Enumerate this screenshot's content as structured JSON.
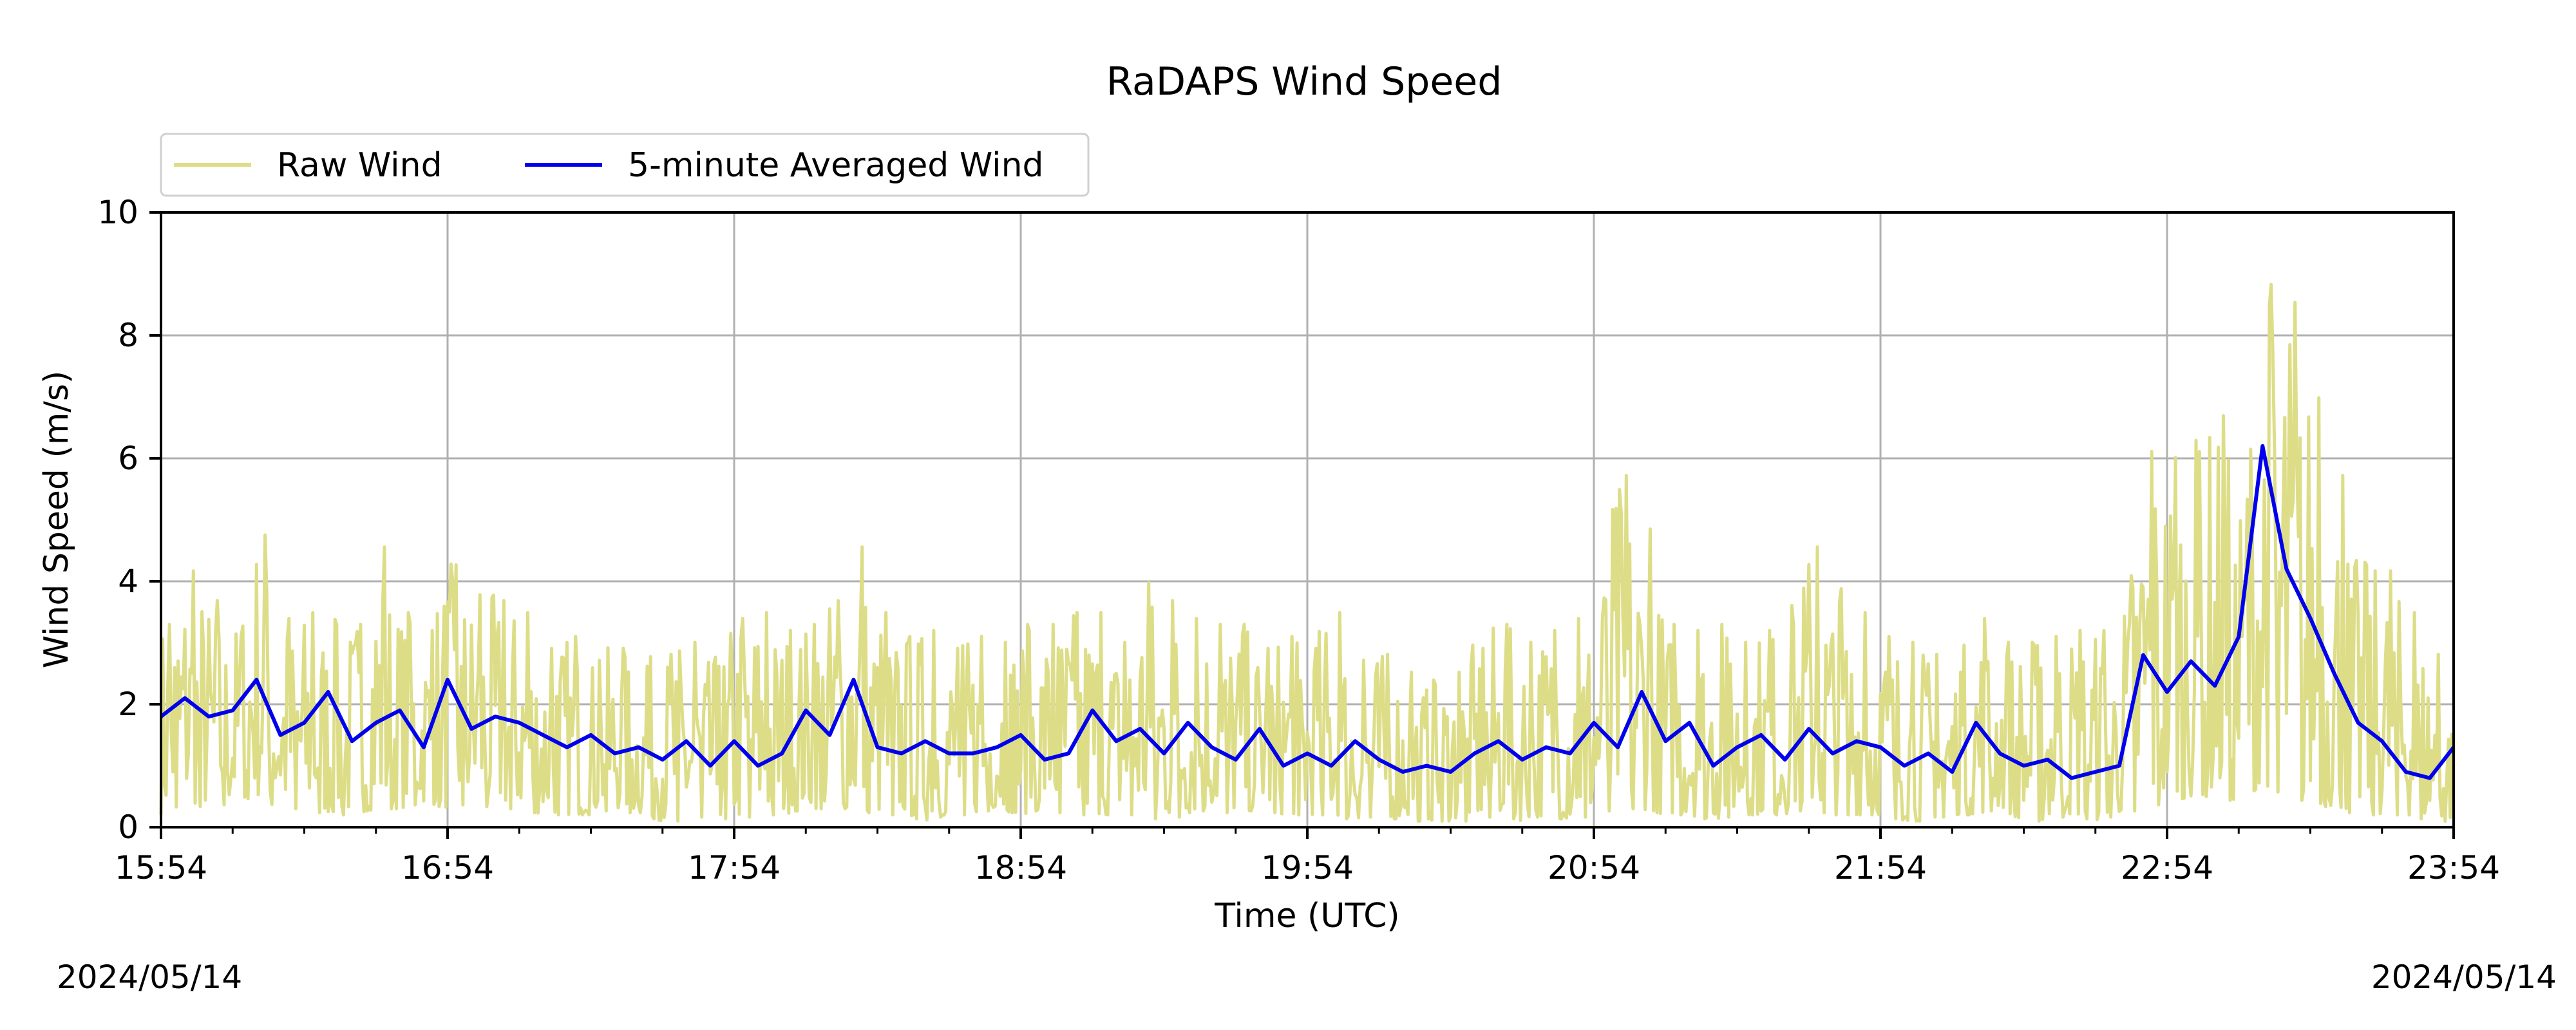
{
  "chart_data": {
    "type": "line",
    "title": "RaDAPS Wind Speed",
    "xlabel": "Time (UTC)",
    "ylabel": "Wind Speed (m/s)",
    "date_start": "2024/05/14",
    "date_end": "2024/05/14",
    "x_ticks": [
      "15:54",
      "16:54",
      "17:54",
      "18:54",
      "19:54",
      "20:54",
      "21:54",
      "22:54",
      "23:54"
    ],
    "y_ticks": [
      "0",
      "2",
      "4",
      "6",
      "8",
      "10"
    ],
    "xlim": [
      "15:54",
      "23:54"
    ],
    "ylim": [
      0,
      10
    ],
    "grid": true,
    "legend_position": "top-left, above plot",
    "series": [
      {
        "name": "Raw Wind",
        "color": "#dddd88",
        "style": "noisy raw samples, envelope (min/max) per 5 minutes",
        "x": [
          "15:54",
          "15:59",
          "16:04",
          "16:09",
          "16:14",
          "16:19",
          "16:24",
          "16:29",
          "16:34",
          "16:39",
          "16:44",
          "16:49",
          "16:54",
          "16:59",
          "17:04",
          "17:09",
          "17:14",
          "17:19",
          "17:24",
          "17:29",
          "17:34",
          "17:39",
          "17:44",
          "17:49",
          "17:54",
          "17:59",
          "18:04",
          "18:09",
          "18:14",
          "18:19",
          "18:24",
          "18:29",
          "18:34",
          "18:39",
          "18:44",
          "18:49",
          "18:54",
          "18:59",
          "19:04",
          "19:09",
          "19:14",
          "19:19",
          "19:24",
          "19:29",
          "19:34",
          "19:39",
          "19:44",
          "19:49",
          "19:54",
          "19:59",
          "20:04",
          "20:09",
          "20:14",
          "20:19",
          "20:24",
          "20:29",
          "20:34",
          "20:39",
          "20:44",
          "20:49",
          "20:54",
          "20:59",
          "21:04",
          "21:09",
          "21:14",
          "21:19",
          "21:24",
          "21:29",
          "21:34",
          "21:39",
          "21:44",
          "21:49",
          "21:54",
          "21:59",
          "22:04",
          "22:09",
          "22:14",
          "22:19",
          "22:24",
          "22:29",
          "22:34",
          "22:39",
          "22:44",
          "22:49",
          "22:54",
          "22:59",
          "23:04",
          "23:09",
          "23:14",
          "23:19",
          "23:24",
          "23:29",
          "23:34",
          "23:39",
          "23:44",
          "23:49",
          "23:54"
        ],
        "max": [
          3.4,
          4.3,
          3.8,
          3.2,
          4.9,
          3.5,
          3.6,
          3.4,
          3.4,
          4.7,
          3.6,
          3.3,
          4.4,
          3.9,
          3.8,
          3.6,
          3.0,
          3.2,
          2.8,
          3.0,
          2.7,
          2.9,
          3.1,
          2.7,
          3.5,
          3.6,
          3.3,
          3.4,
          3.8,
          4.7,
          3.6,
          3.2,
          3.3,
          3.0,
          3.2,
          3.1,
          3.3,
          3.4,
          3.6,
          3.6,
          3.1,
          4.1,
          3.8,
          3.5,
          3.4,
          3.4,
          3.0,
          3.2,
          3.0,
          3.6,
          2.8,
          2.9,
          2.6,
          2.4,
          2.6,
          3.0,
          3.4,
          3.1,
          3.3,
          3.5,
          3.5,
          5.9,
          5.0,
          3.4,
          3.3,
          3.4,
          3.1,
          3.3,
          3.4,
          4.7,
          4.0,
          3.6,
          3.2,
          3.1,
          2.9,
          2.6,
          3.5,
          3.1,
          3.1,
          3.2,
          3.3,
          3.3,
          3.1,
          6.3,
          6.2,
          6.3,
          6.9,
          5.5,
          9.1,
          8.8,
          7.2,
          5.9,
          4.4,
          4.3,
          3.6,
          2.9,
          2.0
        ],
        "min": [
          0.2,
          0.4,
          0.3,
          0.4,
          0.5,
          0.3,
          0.3,
          0.2,
          0.2,
          0.3,
          0.3,
          0.4,
          0.3,
          0.4,
          0.3,
          0.3,
          0.2,
          0.2,
          0.2,
          0.3,
          0.2,
          0.1,
          0.1,
          0.2,
          0.1,
          0.2,
          0.2,
          0.3,
          0.3,
          0.3,
          0.2,
          0.2,
          0.1,
          0.2,
          0.2,
          0.3,
          0.2,
          0.3,
          0.2,
          0.2,
          0.2,
          0.2,
          0.1,
          0.2,
          0.3,
          0.2,
          0.3,
          0.2,
          0.2,
          0.2,
          0.1,
          0.2,
          0.1,
          0.1,
          0.1,
          0.1,
          0.2,
          0.1,
          0.2,
          0.1,
          0.2,
          0.3,
          0.3,
          0.2,
          0.2,
          0.1,
          0.2,
          0.2,
          0.2,
          0.3,
          0.2,
          0.2,
          0.2,
          0.1,
          0.1,
          0.2,
          0.2,
          0.3,
          0.1,
          0.1,
          0.2,
          0.1,
          0.2,
          0.3,
          0.4,
          0.5,
          0.5,
          0.4,
          0.7,
          0.5,
          0.4,
          0.3,
          0.2,
          0.2,
          0.2,
          0.1,
          0.1
        ]
      },
      {
        "name": "5-minute Averaged Wind",
        "color": "#0000ee",
        "x": [
          "15:54",
          "15:59",
          "16:04",
          "16:09",
          "16:14",
          "16:19",
          "16:24",
          "16:29",
          "16:34",
          "16:39",
          "16:44",
          "16:49",
          "16:54",
          "16:59",
          "17:04",
          "17:09",
          "17:14",
          "17:19",
          "17:24",
          "17:29",
          "17:34",
          "17:39",
          "17:44",
          "17:49",
          "17:54",
          "17:59",
          "18:04",
          "18:09",
          "18:14",
          "18:19",
          "18:24",
          "18:29",
          "18:34",
          "18:39",
          "18:44",
          "18:49",
          "18:54",
          "18:59",
          "19:04",
          "19:09",
          "19:14",
          "19:19",
          "19:24",
          "19:29",
          "19:34",
          "19:39",
          "19:44",
          "19:49",
          "19:54",
          "19:59",
          "20:04",
          "20:09",
          "20:14",
          "20:19",
          "20:24",
          "20:29",
          "20:34",
          "20:39",
          "20:44",
          "20:49",
          "20:54",
          "20:59",
          "21:04",
          "21:09",
          "21:14",
          "21:19",
          "21:24",
          "21:29",
          "21:34",
          "21:39",
          "21:44",
          "21:49",
          "21:54",
          "21:59",
          "22:04",
          "22:09",
          "22:14",
          "22:19",
          "22:24",
          "22:29",
          "22:34",
          "22:39",
          "22:44",
          "22:49",
          "22:54",
          "22:59",
          "23:04",
          "23:09",
          "23:14",
          "23:19",
          "23:24",
          "23:29",
          "23:34",
          "23:39",
          "23:44",
          "23:49",
          "23:54"
        ],
        "values": [
          1.8,
          2.1,
          1.8,
          1.9,
          2.4,
          1.5,
          1.7,
          2.2,
          1.4,
          1.7,
          1.9,
          1.3,
          2.4,
          1.6,
          1.8,
          1.7,
          1.5,
          1.3,
          1.5,
          1.2,
          1.3,
          1.1,
          1.4,
          1.0,
          1.4,
          1.0,
          1.2,
          1.9,
          1.5,
          2.4,
          1.3,
          1.2,
          1.4,
          1.2,
          1.2,
          1.3,
          1.5,
          1.1,
          1.2,
          1.9,
          1.4,
          1.6,
          1.2,
          1.7,
          1.3,
          1.1,
          1.6,
          1.0,
          1.2,
          1.0,
          1.4,
          1.1,
          0.9,
          1.0,
          0.9,
          1.2,
          1.4,
          1.1,
          1.3,
          1.2,
          1.7,
          1.3,
          2.2,
          1.4,
          1.7,
          1.0,
          1.3,
          1.5,
          1.1,
          1.6,
          1.2,
          1.4,
          1.3,
          1.0,
          1.2,
          0.9,
          1.7,
          1.2,
          1.0,
          1.1,
          0.8,
          0.9,
          1.0,
          2.8,
          2.2,
          2.7,
          2.3,
          3.1,
          6.2,
          4.2,
          3.4,
          2.5,
          1.7,
          1.4,
          0.9,
          0.8,
          1.3
        ]
      }
    ]
  }
}
